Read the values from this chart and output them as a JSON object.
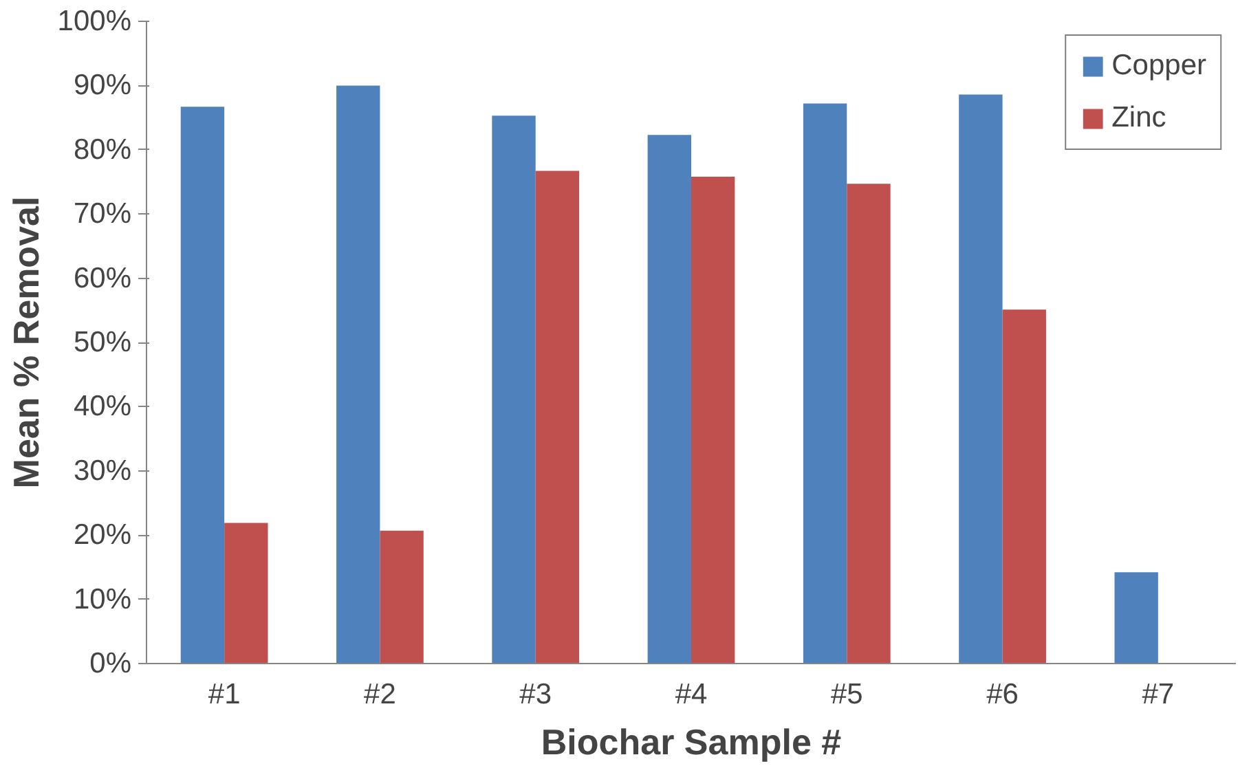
{
  "chart_data": {
    "type": "bar",
    "xlabel": "Biochar Sample #",
    "ylabel": "Mean % Removal",
    "categories": [
      "#1",
      "#2",
      "#3",
      "#4",
      "#5",
      "#6",
      "#7"
    ],
    "series": [
      {
        "name": "Copper",
        "color": "#4f81bd",
        "values": [
          86.7,
          90.0,
          85.3,
          82.3,
          87.2,
          88.6,
          14.2
        ]
      },
      {
        "name": "Zinc",
        "color": "#c0504d",
        "values": [
          21.9,
          20.7,
          76.7,
          75.8,
          74.7,
          55.1,
          null
        ]
      }
    ],
    "ylim": [
      0,
      100
    ],
    "yticks": [
      {
        "value": 0,
        "label": "0%"
      },
      {
        "value": 10,
        "label": "10%"
      },
      {
        "value": 20,
        "label": "20%"
      },
      {
        "value": 30,
        "label": "30%"
      },
      {
        "value": 40,
        "label": "40%"
      },
      {
        "value": 50,
        "label": "50%"
      },
      {
        "value": 60,
        "label": "60%"
      },
      {
        "value": 70,
        "label": "70%"
      },
      {
        "value": 80,
        "label": "80%"
      },
      {
        "value": 90,
        "label": "90%"
      },
      {
        "value": 100,
        "label": "100%"
      }
    ],
    "grid": false,
    "legend": "top right"
  }
}
